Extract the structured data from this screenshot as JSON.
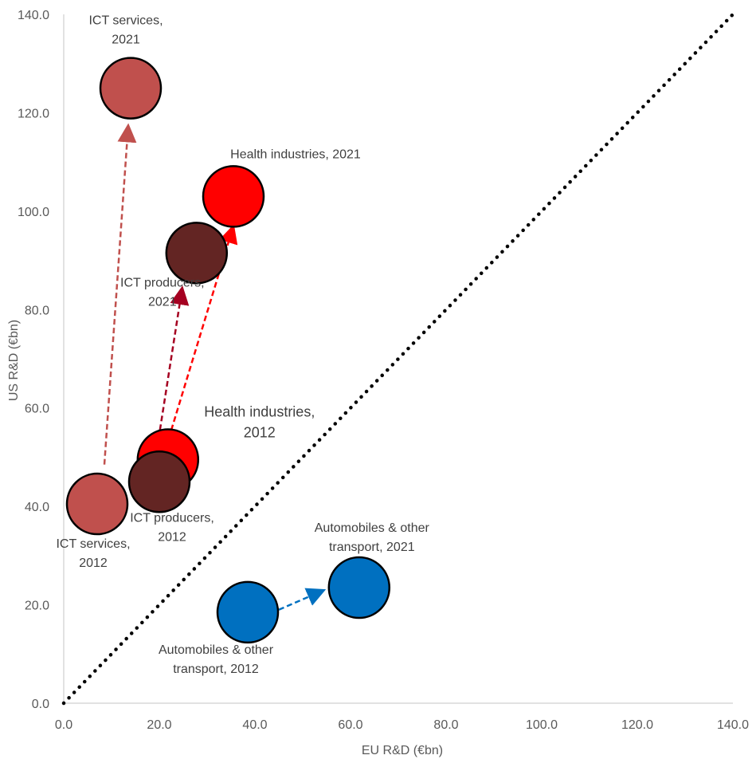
{
  "chart_data": {
    "type": "scatter",
    "title": "",
    "xlabel": "EU R&D (€bn)",
    "ylabel": "US R&D (€bn)",
    "xlim": [
      0,
      140
    ],
    "ylim": [
      0,
      140
    ],
    "x_ticks": [
      "0.0",
      "20.0",
      "40.0",
      "60.0",
      "80.0",
      "100.0",
      "120.0",
      "140.0"
    ],
    "y_ticks": [
      "0.0",
      "20.0",
      "40.0",
      "60.0",
      "80.0",
      "100.0",
      "120.0",
      "140.0"
    ],
    "grid": false,
    "reference_line": "y = x",
    "points": [
      {
        "x": 14.0,
        "y": 125.0,
        "label": [
          "ICT services,",
          "2021"
        ],
        "color": "#c0504d"
      },
      {
        "x": 7.0,
        "y": 40.5,
        "label": [
          "ICT services,",
          "2012"
        ],
        "color": "#c0504d"
      },
      {
        "x": 35.5,
        "y": 103.0,
        "label": [
          "Health industries, 2021"
        ],
        "color": "#ff0000"
      },
      {
        "x": 21.8,
        "y": 49.5,
        "label": [
          "Health industries,",
          "2012"
        ],
        "color": "#ff0000"
      },
      {
        "x": 27.8,
        "y": 91.5,
        "label": [
          "ICT producers,",
          "2021"
        ],
        "color": "#632523"
      },
      {
        "x": 20.0,
        "y": 45.0,
        "label": [
          "ICT producers,",
          "2012"
        ],
        "color": "#632523"
      },
      {
        "x": 61.8,
        "y": 23.5,
        "label": [
          "Automobiles & other",
          "transport, 2021"
        ],
        "color": "#0070c0"
      },
      {
        "x": 38.5,
        "y": 18.5,
        "label": [
          "Automobiles & other",
          "transport, 2012"
        ],
        "color": "#0070c0"
      }
    ],
    "arrows": [
      {
        "from": [
          8.5,
          48.5
        ],
        "to": [
          13.5,
          117.5
        ],
        "color": "#c0504d"
      },
      {
        "from": [
          22.5,
          55.5
        ],
        "to": [
          35.5,
          97.0
        ],
        "color": "#ff0000"
      },
      {
        "from": [
          19.0,
          48.5
        ],
        "to": [
          24.8,
          84.5
        ],
        "color": "#a50021"
      },
      {
        "from": [
          45.0,
          19.0
        ],
        "to": [
          54.5,
          23.0
        ],
        "color": "#0070c0"
      }
    ]
  }
}
